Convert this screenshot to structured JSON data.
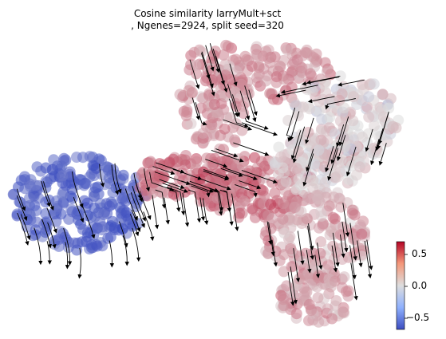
{
  "chart_data": {
    "type": "scatter",
    "title_line1": "Cosine similarity larryMult+sct",
    "title_line2": ", Ngenes=2924, split seed=320",
    "xlabel": "",
    "ylabel": "",
    "grid": false,
    "colormap": "coolwarm",
    "colorbar": {
      "ticks": [
        "0.5",
        "0.0",
        "−0.5"
      ],
      "range": [
        -0.7,
        0.7
      ],
      "low_color": "#3b4cc0",
      "mid_color": "#dddddd",
      "high_color": "#b40426"
    },
    "overlay": "velocity streamlines",
    "regions": [
      {
        "name": "left lobe",
        "value": -0.6
      },
      {
        "name": "center bridge",
        "value": 0.35
      },
      {
        "name": "top arm",
        "value": 0.25
      },
      {
        "name": "right lobe",
        "value": 0.05
      },
      {
        "name": "lower arm",
        "value": 0.2
      }
    ]
  }
}
